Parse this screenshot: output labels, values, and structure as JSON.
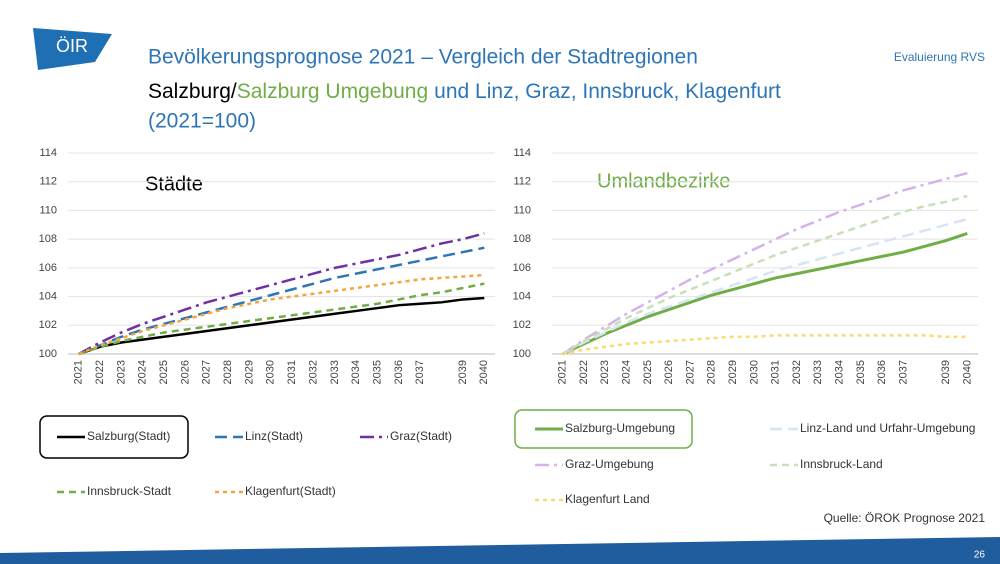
{
  "header": {
    "logo": "ÖIR",
    "tag": "Evaluierung RVS",
    "title": "Bevölkerungsprognose 2021 – Vergleich der Stadtregionen",
    "subtitle_parts": [
      "Salzburg/",
      "Salzburg Umgebung",
      "und Linz, Graz, Innsbruck, Klagenfurt"
    ],
    "subtitle_line2": "(2021=100)"
  },
  "footer": {
    "source": "Quelle: ÖROK Prognose 2021",
    "page": "26"
  },
  "chart_data": [
    {
      "type": "line",
      "title": "Städte",
      "title_color": "#000000",
      "categories": [
        "2021",
        "2022",
        "2023",
        "2024",
        "2025",
        "2026",
        "2027",
        "2028",
        "2029",
        "2030",
        "2031",
        "2032",
        "2033",
        "2034",
        "2035",
        "2036",
        "2037",
        null,
        "2039",
        "2040"
      ],
      "ylim": [
        100,
        114
      ],
      "yticks": [
        100,
        102,
        104,
        106,
        108,
        110,
        112,
        114
      ],
      "grid": true,
      "series": [
        {
          "name": "Salzburg(Stadt)",
          "color": "#000000",
          "values": [
            100,
            100.5,
            100.8,
            101.0,
            101.2,
            101.4,
            101.6,
            101.8,
            102.0,
            102.2,
            102.4,
            102.6,
            102.8,
            103.0,
            103.2,
            103.4,
            103.5,
            103.6,
            103.8,
            103.9
          ]
        },
        {
          "name": "Linz(Stadt)",
          "color": "#2e75b6",
          "values": [
            100,
            100.6,
            101.2,
            101.7,
            102.1,
            102.5,
            102.9,
            103.3,
            103.7,
            104.1,
            104.5,
            104.9,
            105.3,
            105.6,
            105.9,
            106.2,
            106.5,
            106.8,
            107.1,
            107.4
          ]
        },
        {
          "name": "Graz(Stadt)",
          "color": "#7030a0",
          "values": [
            100,
            100.8,
            101.5,
            102.1,
            102.6,
            103.1,
            103.6,
            104.0,
            104.4,
            104.8,
            105.2,
            105.6,
            106.0,
            106.3,
            106.6,
            106.9,
            107.3,
            107.7,
            108.0,
            108.4
          ]
        },
        {
          "name": "Innsbruck-Stadt",
          "color": "#70ad47",
          "values": [
            100,
            100.5,
            100.9,
            101.2,
            101.5,
            101.7,
            101.9,
            102.1,
            102.3,
            102.5,
            102.7,
            102.9,
            103.1,
            103.3,
            103.5,
            103.8,
            104.1,
            104.3,
            104.6,
            104.9
          ]
        },
        {
          "name": "Klagenfurt(Stadt)",
          "color": "#f4a43c",
          "values": [
            100,
            100.6,
            101.1,
            101.6,
            102.0,
            102.4,
            102.8,
            103.2,
            103.5,
            103.8,
            104.0,
            104.2,
            104.4,
            104.6,
            104.8,
            105.0,
            105.2,
            105.3,
            105.4,
            105.5
          ]
        }
      ]
    },
    {
      "type": "line",
      "title": "Umlandbezirke",
      "title_color": "#70ad47",
      "categories": [
        "2021",
        "2022",
        "2023",
        "2024",
        "2025",
        "2026",
        "2027",
        "2028",
        "2029",
        "2030",
        "2031",
        "2032",
        "2033",
        "2034",
        "2035",
        "2036",
        "2037",
        null,
        "2039",
        "2040"
      ],
      "ylim": [
        100,
        114
      ],
      "yticks": [
        100,
        102,
        104,
        106,
        108,
        110,
        112,
        114
      ],
      "grid": true,
      "series": [
        {
          "name": "Salzburg-Umgebung",
          "color": "#70ad47",
          "values": [
            100,
            100.7,
            101.4,
            102.0,
            102.6,
            103.1,
            103.6,
            104.1,
            104.5,
            104.9,
            105.3,
            105.6,
            105.9,
            106.2,
            106.5,
            106.8,
            107.1,
            107.5,
            107.9,
            108.4
          ]
        },
        {
          "name": "Linz-Land und Urfahr-Umgebung",
          "color": "#d6e4f5",
          "values": [
            100,
            100.8,
            101.5,
            102.2,
            102.8,
            103.3,
            103.8,
            104.3,
            104.8,
            105.3,
            105.8,
            106.2,
            106.6,
            107.0,
            107.4,
            107.8,
            108.2,
            108.6,
            109.0,
            109.4
          ]
        },
        {
          "name": "Graz-Umgebung",
          "color": "#d5b3ea",
          "values": [
            100,
            101.0,
            101.9,
            102.8,
            103.6,
            104.4,
            105.2,
            105.9,
            106.6,
            107.3,
            108.0,
            108.7,
            109.3,
            109.9,
            110.4,
            110.9,
            111.4,
            111.8,
            112.2,
            112.6
          ]
        },
        {
          "name": "Innsbruck-Land",
          "color": "#c9e0b5",
          "values": [
            100,
            100.9,
            101.7,
            102.5,
            103.2,
            103.9,
            104.5,
            105.1,
            105.7,
            106.3,
            106.9,
            107.4,
            107.9,
            108.4,
            108.9,
            109.4,
            109.9,
            110.3,
            110.6,
            111.0
          ]
        },
        {
          "name": "Klagenfurt Land",
          "color": "#fbd970",
          "values": [
            100,
            100.3,
            100.5,
            100.7,
            100.8,
            100.9,
            101.0,
            101.1,
            101.2,
            101.2,
            101.3,
            101.3,
            101.3,
            101.3,
            101.3,
            101.3,
            101.3,
            101.3,
            101.2,
            101.2
          ]
        }
      ]
    }
  ]
}
